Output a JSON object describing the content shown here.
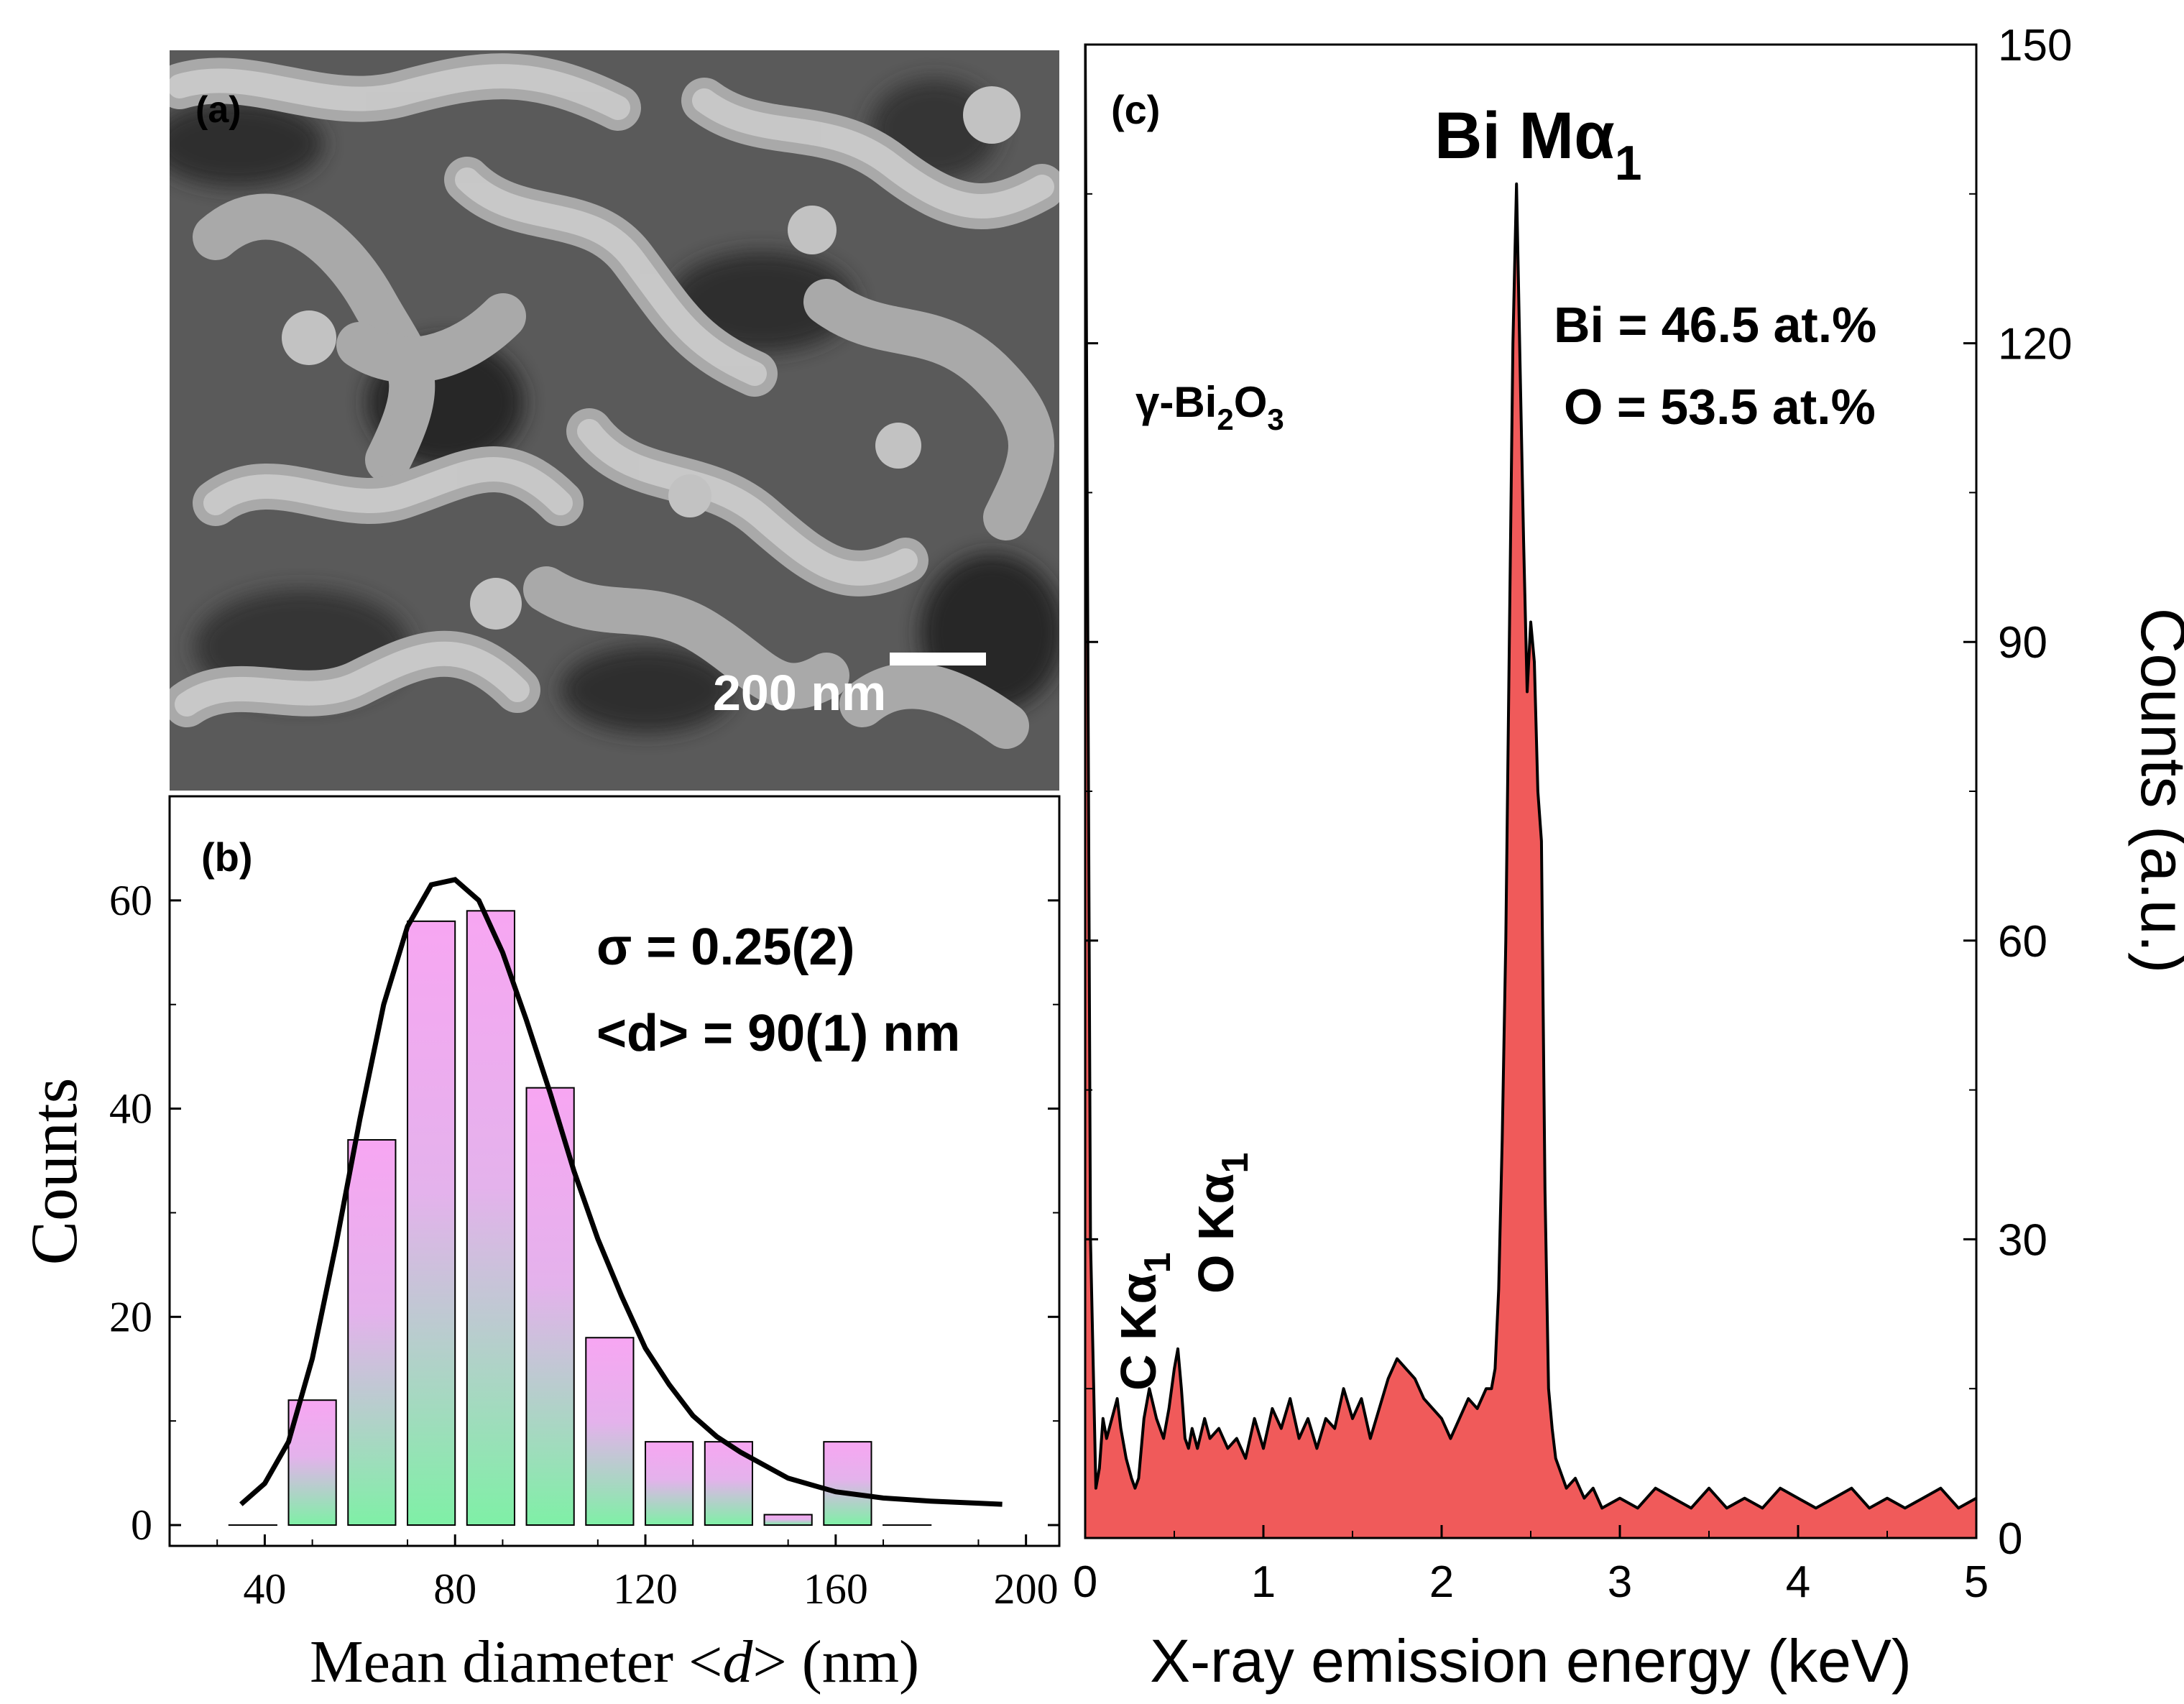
{
  "sem_image": {
    "panel_label": "(a)",
    "scale_bar_label": "200 nm"
  },
  "colors": {
    "hist_top": "#f7a6f2",
    "hist_bottom": "#7ff0a6",
    "eds_fill": "#f05a5a",
    "line": "#000000"
  },
  "chart_data": [
    {
      "type": "bar",
      "panel_label": "(b)",
      "xlabel_pre": "Mean diameter <",
      "xlabel_var": "d",
      "xlabel_post": "> (nm)",
      "ylabel": "Counts",
      "xlim": [
        20,
        207
      ],
      "ylim": [
        -2,
        70
      ],
      "xticks": [
        40,
        80,
        120,
        160,
        200
      ],
      "yticks": [
        0,
        20,
        40,
        60
      ],
      "bins": [
        {
          "center": 37.5,
          "value": 0
        },
        {
          "center": 50,
          "value": 12
        },
        {
          "center": 62.5,
          "value": 37
        },
        {
          "center": 75,
          "value": 58
        },
        {
          "center": 87.5,
          "value": 59
        },
        {
          "center": 100,
          "value": 42
        },
        {
          "center": 112.5,
          "value": 18
        },
        {
          "center": 125,
          "value": 8
        },
        {
          "center": 137.5,
          "value": 8
        },
        {
          "center": 150,
          "value": 1
        },
        {
          "center": 162.5,
          "value": 8
        },
        {
          "center": 175,
          "value": 0
        }
      ],
      "bin_width": 10,
      "fit": {
        "type": "lognormal",
        "x": [
          35,
          40,
          45,
          50,
          55,
          60,
          65,
          70,
          75,
          80,
          85,
          90,
          95,
          100,
          105,
          110,
          115,
          120,
          125,
          130,
          135,
          140,
          150,
          160,
          170,
          180,
          190,
          195
        ],
        "y": [
          2,
          4,
          8,
          16,
          27,
          39,
          50,
          57.5,
          61.5,
          62,
          60,
          55,
          48.5,
          41.5,
          34,
          27.5,
          22,
          17,
          13.5,
          10.5,
          8.5,
          7,
          4.5,
          3.2,
          2.6,
          2.3,
          2.1,
          2
        ]
      },
      "annotations": {
        "sigma": "σ = 0.25(2)",
        "mean": "<d> = 90(1) nm"
      }
    },
    {
      "type": "area",
      "panel_label": "(c)",
      "xlabel": "X-ray emission energy (keV)",
      "ylabel": "Counts (a.u.)",
      "xlim": [
        0,
        5
      ],
      "ylim": [
        0,
        150
      ],
      "xticks": [
        0,
        1,
        2,
        3,
        4,
        5
      ],
      "yticks": [
        0,
        30,
        60,
        90,
        120,
        150
      ],
      "x": [
        0.0,
        0.03,
        0.06,
        0.08,
        0.1,
        0.12,
        0.15,
        0.18,
        0.2,
        0.23,
        0.26,
        0.28,
        0.3,
        0.33,
        0.36,
        0.4,
        0.44,
        0.47,
        0.5,
        0.52,
        0.54,
        0.56,
        0.58,
        0.6,
        0.63,
        0.67,
        0.7,
        0.75,
        0.8,
        0.85,
        0.9,
        0.95,
        1.0,
        1.05,
        1.1,
        1.15,
        1.2,
        1.25,
        1.3,
        1.35,
        1.4,
        1.45,
        1.5,
        1.55,
        1.6,
        1.65,
        1.7,
        1.75,
        1.8,
        1.85,
        1.9,
        1.95,
        2.0,
        2.05,
        2.1,
        2.15,
        2.2,
        2.25,
        2.28,
        2.3,
        2.32,
        2.34,
        2.36,
        2.38,
        2.4,
        2.42,
        2.44,
        2.46,
        2.48,
        2.5,
        2.52,
        2.54,
        2.56,
        2.58,
        2.6,
        2.62,
        2.64,
        2.66,
        2.7,
        2.75,
        2.8,
        2.85,
        2.9,
        3.0,
        3.1,
        3.2,
        3.3,
        3.4,
        3.5,
        3.6,
        3.7,
        3.8,
        3.9,
        4.0,
        4.1,
        4.2,
        4.3,
        4.4,
        4.5,
        4.6,
        4.7,
        4.8,
        4.9,
        5.0
      ],
      "y": [
        150,
        30,
        5,
        7,
        12,
        10,
        12,
        14,
        11,
        8,
        6,
        5,
        6,
        12,
        15,
        12,
        10,
        13,
        17,
        19,
        15,
        10,
        9,
        11,
        9,
        12,
        10,
        11,
        9,
        10,
        8,
        12,
        9,
        13,
        11,
        14,
        10,
        12,
        9,
        12,
        11,
        15,
        12,
        14,
        10,
        13,
        16,
        18,
        17,
        16,
        14,
        13,
        12,
        10,
        12,
        14,
        13,
        15,
        15,
        17,
        25,
        40,
        60,
        90,
        120,
        136,
        118,
        100,
        85,
        92,
        88,
        75,
        70,
        35,
        15,
        11,
        8,
        7,
        5,
        6,
        4,
        5,
        3,
        4,
        3,
        5,
        4,
        3,
        5,
        3,
        4,
        3,
        5,
        4,
        3,
        4,
        5,
        3,
        4,
        3,
        4,
        5,
        3,
        4
      ],
      "annotations": {
        "phase_base": "γ-Bi",
        "phase_sub1": "2",
        "phase_mid": "O",
        "phase_sub2": "3",
        "bi_peak": "Bi Mα",
        "bi_peak_sub": "1",
        "c_peak": "C Kα",
        "c_peak_sub": "1",
        "o_peak": "O Kα",
        "o_peak_sub": "1",
        "bi_content": "Bi = 46.5 at.%",
        "o_content": "O = 53.5 at.%"
      }
    }
  ]
}
